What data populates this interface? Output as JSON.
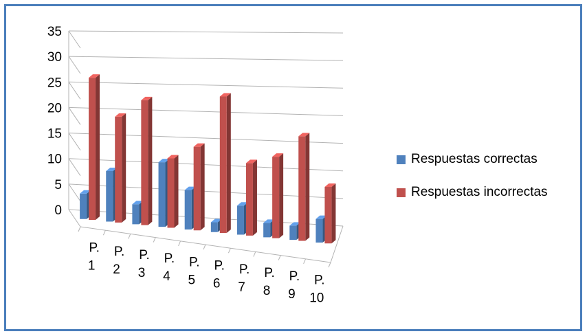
{
  "chart_data": {
    "type": "bar",
    "categories": [
      [
        "P.",
        "1"
      ],
      [
        "P.",
        "2"
      ],
      [
        "P.",
        "3"
      ],
      [
        "P.",
        "4"
      ],
      [
        "P.",
        "5"
      ],
      [
        "P.",
        "6"
      ],
      [
        "P.",
        "7"
      ],
      [
        "P.",
        "8"
      ],
      [
        "P.",
        "9"
      ],
      [
        "P.",
        "10"
      ]
    ],
    "series": [
      {
        "name": "Respuestas correctas",
        "color": "#4f81bd",
        "values": [
          5,
          10,
          4,
          13,
          8,
          2,
          6,
          3,
          3,
          5
        ]
      },
      {
        "name": "Respuestas incorrectas",
        "color": "#c0504d",
        "values": [
          28,
          21,
          25,
          14,
          17,
          28,
          15,
          17,
          22,
          12
        ]
      }
    ],
    "yticks": [
      0,
      5,
      10,
      15,
      20,
      25,
      30,
      35
    ],
    "ylim": [
      0,
      35
    ],
    "grid": true,
    "legend_position": "right",
    "title": "",
    "xlabel": "",
    "ylabel": ""
  }
}
